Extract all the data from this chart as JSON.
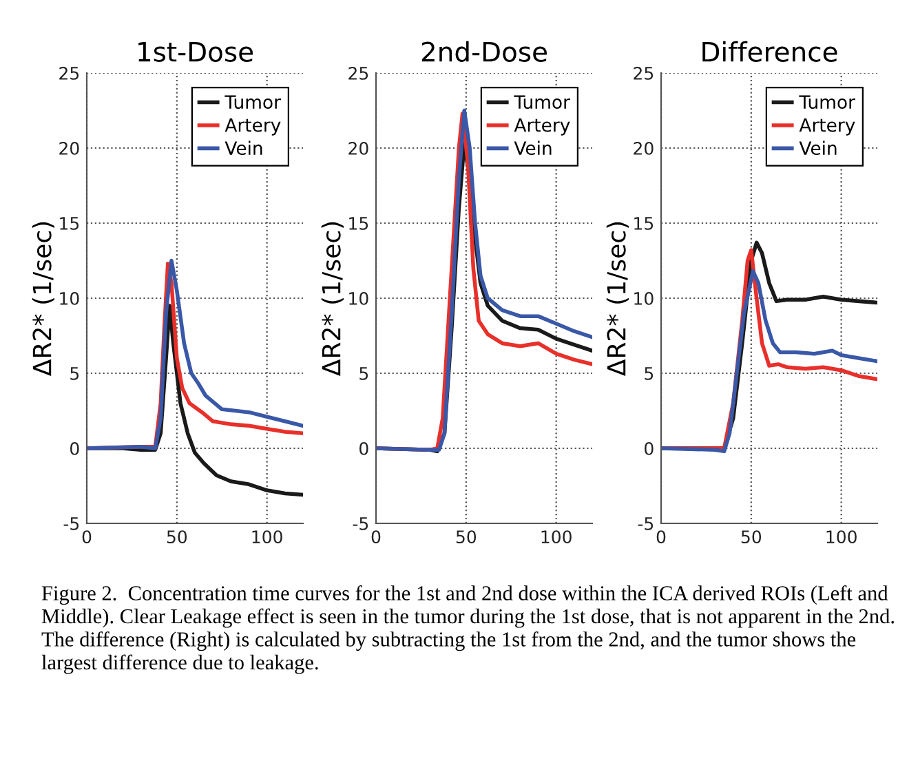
{
  "chart_data": [
    {
      "type": "line",
      "title": "1st-Dose",
      "ylabel": "ΔR2* (1/sec)",
      "xlim": [
        0,
        120
      ],
      "ylim": [
        -5,
        25
      ],
      "xticks": [
        0,
        50,
        100
      ],
      "yticks": [
        -5,
        0,
        5,
        10,
        15,
        20,
        25
      ],
      "grid": true,
      "legend": "top right",
      "marker": "none",
      "line_style": "solid",
      "series": [
        {
          "name": "Tumor",
          "color": "#1a1a1a",
          "x": [
            0,
            20,
            30,
            38,
            41,
            44,
            46,
            48,
            52,
            56,
            60,
            65,
            72,
            80,
            90,
            100,
            110,
            120
          ],
          "values": [
            0,
            0,
            -0.1,
            -0.1,
            1,
            6,
            9.5,
            7,
            3,
            1,
            -0.3,
            -1,
            -1.8,
            -2.2,
            -2.4,
            -2.8,
            -3,
            -3.1
          ]
        },
        {
          "name": "Artery",
          "color": "#e8302b",
          "x": [
            0,
            30,
            38,
            41,
            43,
            45,
            47,
            50,
            53,
            57,
            65,
            70,
            80,
            90,
            100,
            110,
            120
          ],
          "values": [
            0,
            0.1,
            0.1,
            3,
            8,
            12.3,
            11,
            6,
            4,
            3,
            2.3,
            1.8,
            1.6,
            1.5,
            1.3,
            1.1,
            1
          ]
        },
        {
          "name": "Vein",
          "color": "#3a58a8",
          "x": [
            0,
            30,
            38,
            41,
            44,
            47,
            50,
            54,
            58,
            62,
            66,
            75,
            90,
            100,
            110,
            120
          ],
          "values": [
            0,
            0.1,
            0,
            2,
            9,
            12.5,
            10.5,
            7,
            5,
            4.3,
            3.5,
            2.6,
            2.4,
            2.1,
            1.8,
            1.5
          ]
        }
      ]
    },
    {
      "type": "line",
      "title": "2nd-Dose",
      "ylabel": "ΔR2* (1/sec)",
      "xlim": [
        0,
        120
      ],
      "ylim": [
        -5,
        25
      ],
      "xticks": [
        0,
        50,
        100
      ],
      "yticks": [
        -5,
        0,
        5,
        10,
        15,
        20,
        25
      ],
      "grid": true,
      "legend": "top right",
      "marker": "none",
      "line_style": "solid",
      "series": [
        {
          "name": "Tumor",
          "color": "#1a1a1a",
          "x": [
            0,
            30,
            34,
            38,
            42,
            46,
            49,
            52,
            55,
            58,
            62,
            70,
            80,
            90,
            100,
            110,
            120
          ],
          "values": [
            0,
            -0.1,
            -0.2,
            1,
            8,
            16,
            20.3,
            18,
            14,
            11,
            9.5,
            8.5,
            8,
            7.9,
            7.3,
            6.9,
            6.5
          ]
        },
        {
          "name": "Artery",
          "color": "#e8302b",
          "x": [
            0,
            30,
            34,
            37,
            42,
            46,
            48,
            51,
            54,
            57,
            62,
            70,
            80,
            90,
            100,
            110,
            120
          ],
          "values": [
            0,
            -0.1,
            0,
            2,
            12,
            20,
            22.3,
            19,
            12,
            8.5,
            7.6,
            7,
            6.8,
            7,
            6.3,
            5.9,
            5.6
          ]
        },
        {
          "name": "Vein",
          "color": "#3a58a8",
          "x": [
            0,
            30,
            35,
            38,
            42,
            46,
            49,
            52,
            55,
            58,
            62,
            70,
            80,
            90,
            100,
            110,
            120
          ],
          "values": [
            0,
            -0.1,
            -0.1,
            1,
            9,
            18,
            22.5,
            20,
            15,
            11.5,
            10,
            9.2,
            8.8,
            8.8,
            8.3,
            7.8,
            7.4
          ]
        }
      ]
    },
    {
      "type": "line",
      "title": "Difference",
      "ylabel": "ΔR2* (1/sec)",
      "xlim": [
        0,
        120
      ],
      "ylim": [
        -5,
        25
      ],
      "xticks": [
        0,
        50,
        100
      ],
      "yticks": [
        -5,
        0,
        5,
        10,
        15,
        20,
        25
      ],
      "grid": true,
      "legend": "top right",
      "marker": "none",
      "line_style": "solid",
      "annotations": [
        "Figure 2.  Concentration time curves for the 1st and 2nd dose within the ICA derived ROIs (Left and Middle). Clear Leakage effect is seen in the tumor during the 1st dose, that is not apparent in the 2nd. The difference (Right) is calculated by subtracting the 1st from the 2nd, and the tumor shows the largest difference due to leakage."
      ],
      "series": [
        {
          "name": "Tumor",
          "color": "#1a1a1a",
          "x": [
            0,
            30,
            35,
            40,
            45,
            50,
            53,
            56,
            60,
            64,
            70,
            80,
            90,
            100,
            110,
            120
          ],
          "values": [
            0,
            0,
            0,
            2,
            7,
            12.5,
            13.7,
            13,
            11,
            9.8,
            9.9,
            9.9,
            10.1,
            9.9,
            9.8,
            9.7
          ]
        },
        {
          "name": "Artery",
          "color": "#e8302b",
          "x": [
            0,
            30,
            35,
            40,
            45,
            48,
            50,
            53,
            56,
            60,
            65,
            70,
            80,
            90,
            100,
            110,
            120
          ],
          "values": [
            0,
            0,
            0,
            3,
            8.5,
            12.5,
            13.2,
            10,
            7,
            5.5,
            5.6,
            5.4,
            5.3,
            5.4,
            5.2,
            4.8,
            4.6
          ]
        },
        {
          "name": "Vein",
          "color": "#3a58a8",
          "x": [
            0,
            30,
            35,
            38,
            42,
            46,
            51,
            54,
            58,
            62,
            66,
            75,
            85,
            95,
            100,
            110,
            120
          ],
          "values": [
            0,
            -0.1,
            -0.2,
            1,
            5,
            9,
            11.8,
            11,
            8.5,
            7,
            6.4,
            6.4,
            6.3,
            6.5,
            6.2,
            6,
            5.8
          ]
        }
      ]
    }
  ]
}
